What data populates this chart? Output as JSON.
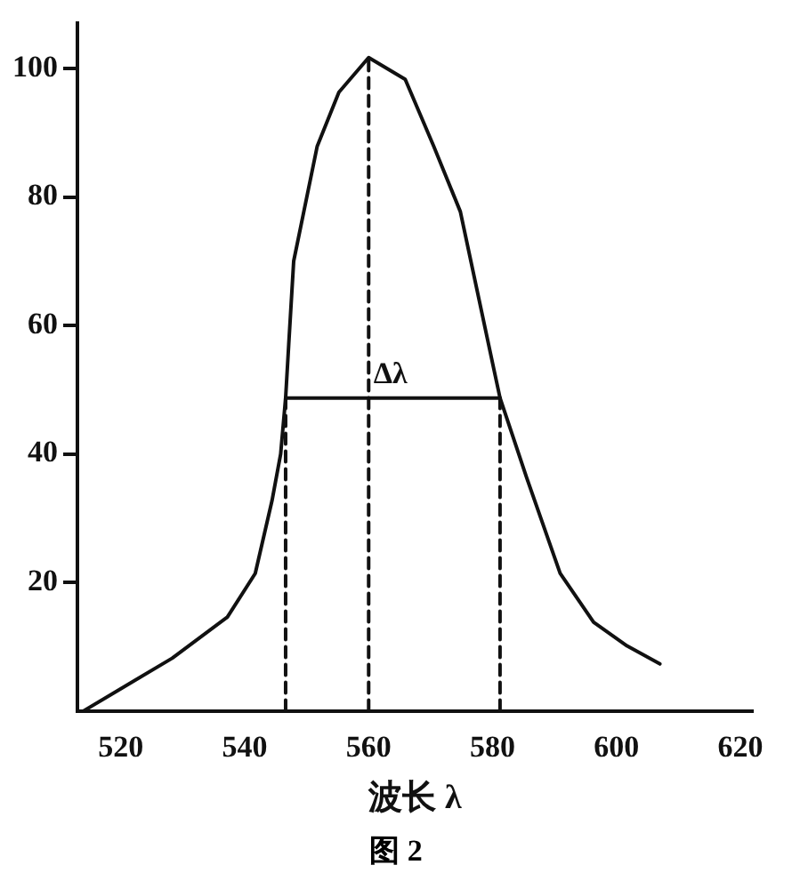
{
  "chart_data": {
    "type": "line",
    "xlabel": "波长 λ",
    "xlim": [
      513,
      622
    ],
    "xticks": [
      520,
      540,
      560,
      580,
      600,
      620
    ],
    "ylim": [
      0,
      107
    ],
    "yticks": [
      20,
      40,
      60,
      80,
      100
    ],
    "grid": false,
    "legend": false,
    "marker": "none",
    "series": [
      {
        "color": "#111111",
        "line_style": "solid",
        "x": [
          514,
          519.4,
          528.3,
          537.2,
          541.7,
          544.4,
          545.8,
          546.6,
          547.1,
          547.9,
          551.7,
          555.2,
          560,
          565.9,
          570.5,
          574.8,
          580.2,
          581.2,
          585.5,
          590.9,
          596.3,
          601.7,
          607
        ],
        "values": [
          0,
          3.1,
          8.2,
          14.6,
          21.4,
          32.7,
          40,
          48.7,
          57,
          70,
          87.9,
          96.3,
          101.7,
          98.3,
          87.9,
          77.7,
          53.2,
          48.7,
          36.3,
          21.4,
          13.8,
          10.1,
          7.3
        ]
      },
      {
        "color": "#111111",
        "line_style": "dashed",
        "x": [
          546.6,
          546.6
        ],
        "values": [
          0,
          48.7
        ]
      },
      {
        "color": "#111111",
        "line_style": "dashed",
        "x": [
          560,
          560
        ],
        "values": [
          0,
          101.7
        ]
      },
      {
        "color": "#111111",
        "line_style": "dashed",
        "x": [
          581.2,
          581.2
        ],
        "values": [
          0,
          48.7
        ]
      },
      {
        "color": "#111111",
        "line_style": "solid",
        "x": [
          546.6,
          581.2
        ],
        "values": [
          48.7,
          48.7
        ]
      }
    ],
    "annotations": [
      {
        "text": "Δλ",
        "x": 563.5,
        "y": 48.7
      },
      "图 2"
    ]
  }
}
